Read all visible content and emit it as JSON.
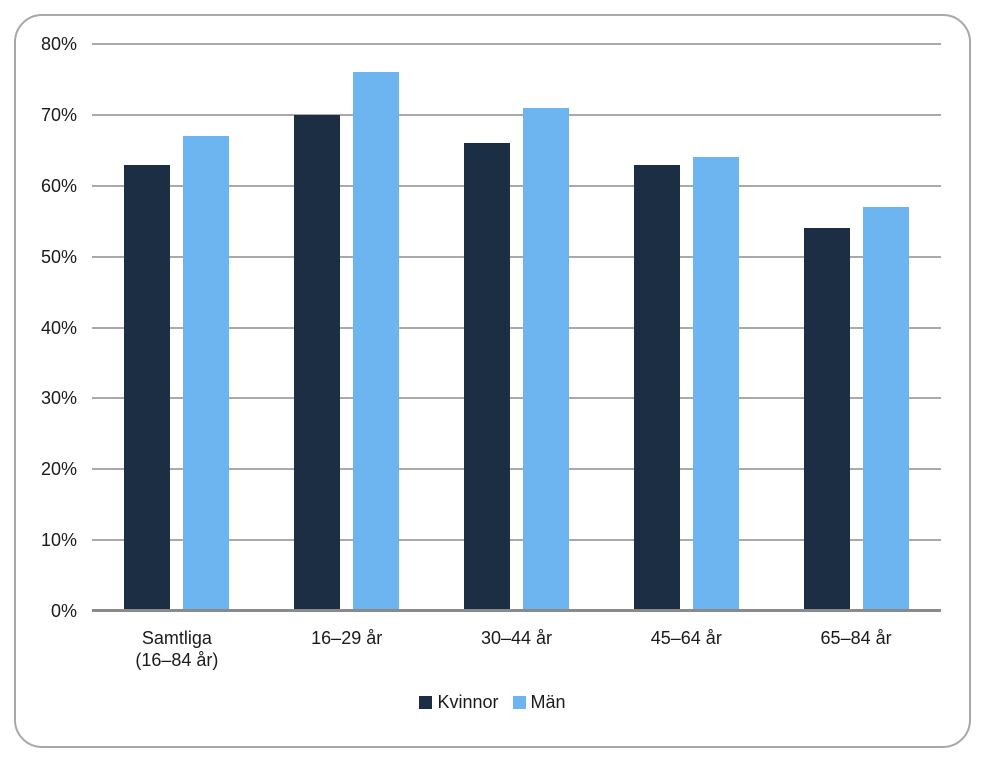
{
  "chart_data": {
    "type": "bar",
    "title": "",
    "xlabel": "",
    "ylabel": "",
    "categories": [
      "Samtliga\n(16–84 år)",
      "16–29 år",
      "30–44 år",
      "45–64 år",
      "65–84 år"
    ],
    "series": [
      {
        "name": "Kvinnor",
        "color": "#1b2e44",
        "values": [
          63,
          70,
          66,
          63,
          54
        ]
      },
      {
        "name": "Män",
        "color": "#6cb5f0",
        "values": [
          67,
          76,
          71,
          64,
          57
        ]
      }
    ],
    "unit": "%",
    "ylim": [
      0,
      80
    ],
    "ytick_step": 10,
    "ytick_labels": [
      "0%",
      "10%",
      "20%",
      "30%",
      "40%",
      "50%",
      "60%",
      "70%",
      "80%"
    ],
    "grid": true,
    "legend_position": "bottom"
  },
  "style": {
    "gridline_color": "#a9a9a9",
    "axis_line_color": "#8a8a8a",
    "frame_border_color": "#a8a8a8",
    "text_color": "#1a1a1a",
    "background_color": "#ffffff"
  }
}
